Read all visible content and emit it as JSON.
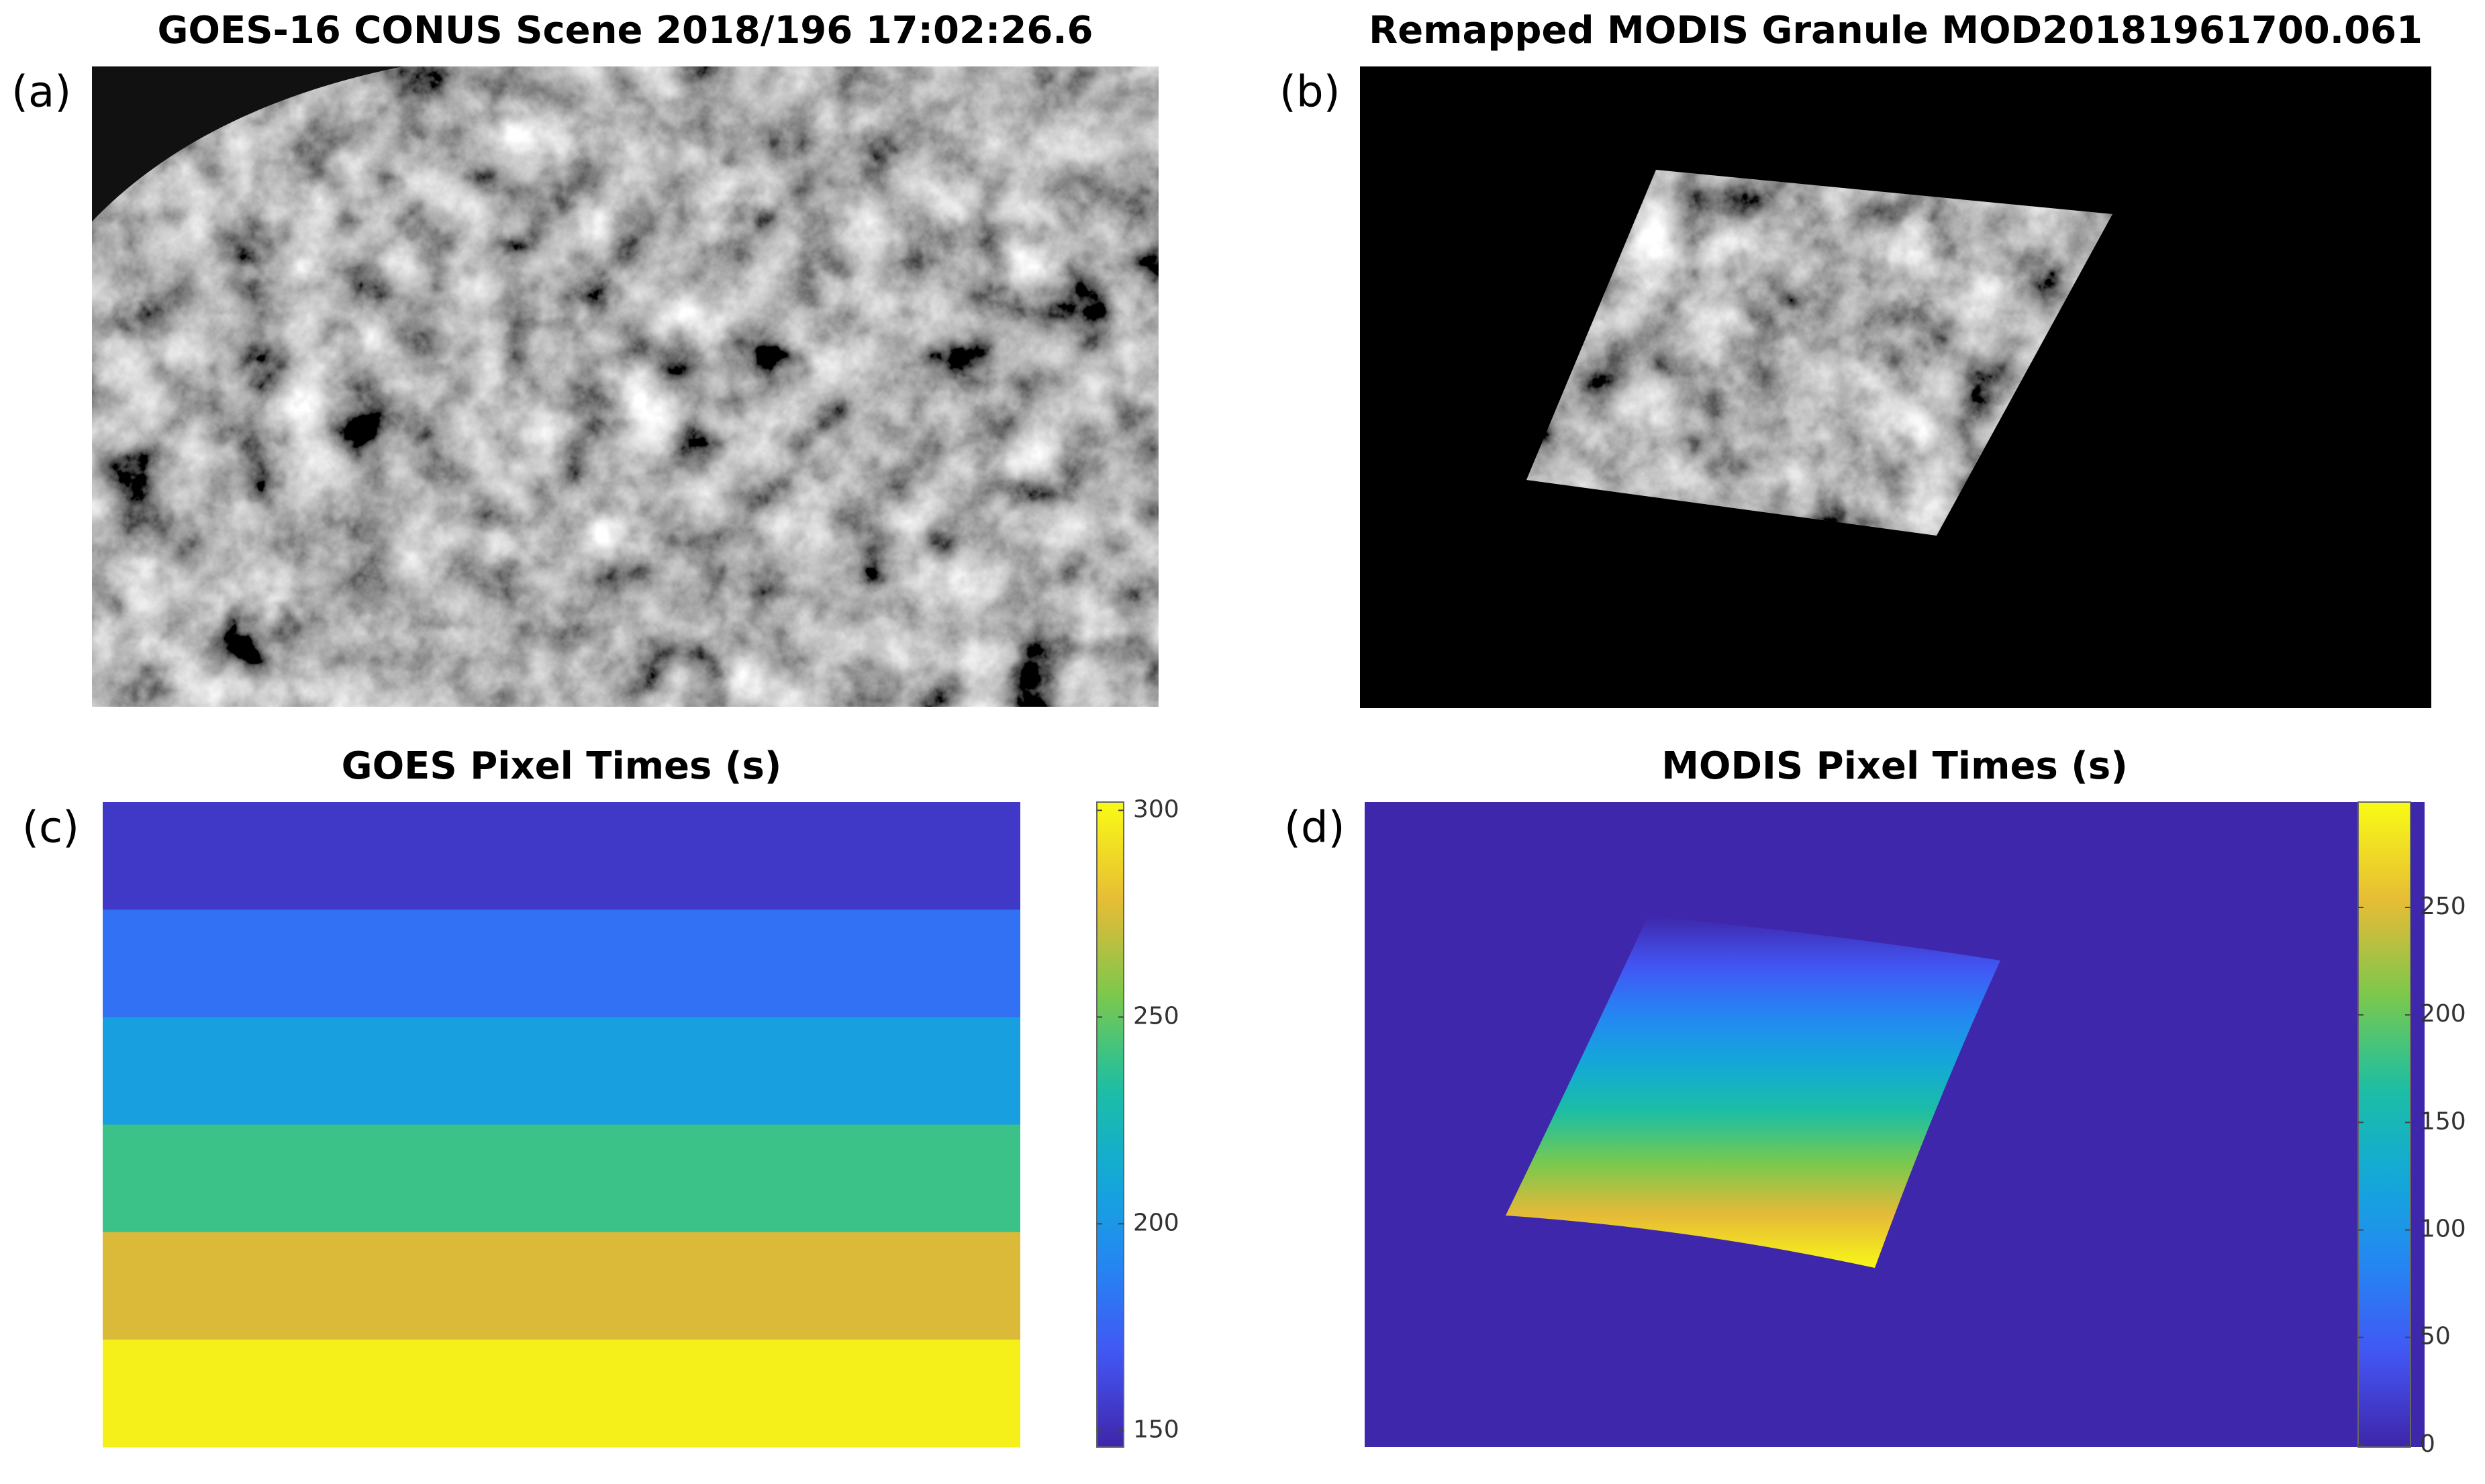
{
  "chart_data": [
    {
      "type": "image",
      "panel": "(a)",
      "title": "GOES-16 CONUS Scene 2018/196 17:02:26.6"
    },
    {
      "type": "image",
      "panel": "(b)",
      "title": "Remapped MODIS Granule MOD20181961700.061"
    },
    {
      "type": "heatmap",
      "panel": "(c)",
      "title": "GOES Pixel Times (s)",
      "values": [
        155,
        180,
        205,
        240,
        275,
        298
      ],
      "clim": [
        146,
        302
      ],
      "cticks": [
        150,
        200,
        250,
        300
      ]
    },
    {
      "type": "swath",
      "panel": "(d)",
      "title": "MODIS Pixel Times (s)",
      "background": 0,
      "swath_range": [
        0,
        296
      ],
      "clim": [
        -1,
        299
      ],
      "cticks": [
        0,
        50,
        100,
        150,
        200,
        250
      ]
    }
  ]
}
